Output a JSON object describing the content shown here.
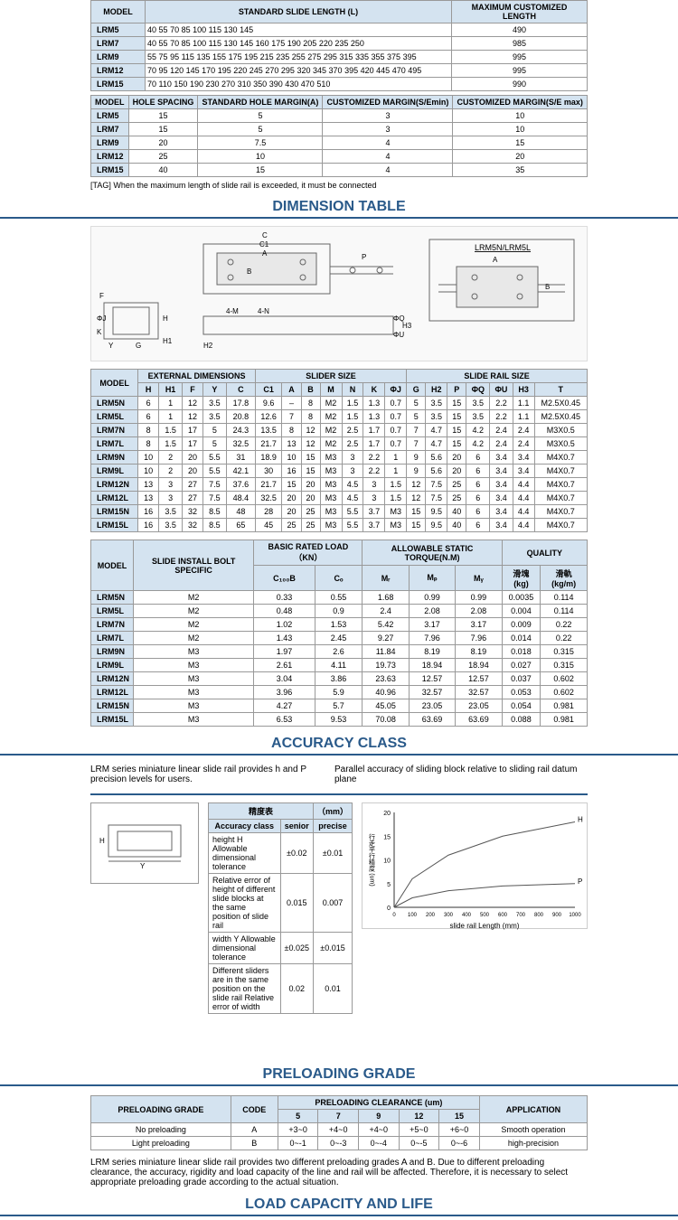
{
  "colors": {
    "header_bg": "#d4e3f0",
    "border": "#999999",
    "title": "#2a5a8a",
    "text": "#222222"
  },
  "table1": {
    "headers": [
      "MODEL",
      "STANDARD SLIDE LENGTH (L)",
      "MAXIMUM CUSTOMIZED LENGTH"
    ],
    "rows": [
      {
        "model": "LRM5",
        "lengths": "40 55 70 85 100 115 130 145",
        "max": "490"
      },
      {
        "model": "LRM7",
        "lengths": "40 55 70 85 100 115 130 145 160 175 190 205 220 235 250",
        "max": "985"
      },
      {
        "model": "LRM9",
        "lengths": "55 75 95 115 135 155 175 195 215 235 255 275 295 315 335 355 375 395",
        "max": "995"
      },
      {
        "model": "LRM12",
        "lengths": "70 95 120 145 170 195 220 245 270 295 320 345 370 395 420 445 470 495",
        "max": "995"
      },
      {
        "model": "LRM15",
        "lengths": "70 110 150 190 230 270 310 350 390 430 470 510",
        "max": "990"
      }
    ]
  },
  "table2": {
    "headers": [
      "MODEL",
      "HOLE SPACING",
      "STANDARD HOLE MARGIN(A)",
      "CUSTOMIZED MARGIN(S/Emin)",
      "CUSTOMIZED MARGIN(S/E max)"
    ],
    "rows": [
      [
        "LRM5",
        "15",
        "5",
        "3",
        "10"
      ],
      [
        "LRM7",
        "15",
        "5",
        "3",
        "10"
      ],
      [
        "LRM9",
        "20",
        "7.5",
        "4",
        "15"
      ],
      [
        "LRM12",
        "25",
        "10",
        "4",
        "20"
      ],
      [
        "LRM15",
        "40",
        "15",
        "4",
        "35"
      ]
    ]
  },
  "note1": "[TAG]   When the maximum length of slide rail is exceeded, it must be connected",
  "sec_dimension": "DIMENSION TABLE",
  "diagram_label": "LRM5N/LRM5L",
  "dim_table": {
    "group_headers": [
      "MODEL",
      "EXTERNAL DIMENSIONS",
      "SLIDER  SIZE",
      "SLIDE RAIL  SIZE"
    ],
    "sub_headers": [
      "H",
      "H1",
      "F",
      "Y",
      "C",
      "C1",
      "A",
      "B",
      "M",
      "N",
      "K",
      "ΦJ",
      "G",
      "H2",
      "P",
      "ΦQ",
      "ΦU",
      "H3",
      "T"
    ],
    "rows": [
      [
        "LRM5N",
        "6",
        "1",
        "12",
        "3.5",
        "17.8",
        "9.6",
        "–",
        "8",
        "M2",
        "1.5",
        "1.3",
        "0.7",
        "5",
        "3.5",
        "15",
        "3.5",
        "2.2",
        "1.1",
        "M2.5X0.45"
      ],
      [
        "LRM5L",
        "6",
        "1",
        "12",
        "3.5",
        "20.8",
        "12.6",
        "7",
        "8",
        "M2",
        "1.5",
        "1.3",
        "0.7",
        "5",
        "3.5",
        "15",
        "3.5",
        "2.2",
        "1.1",
        "M2.5X0.45"
      ],
      [
        "LRM7N",
        "8",
        "1.5",
        "17",
        "5",
        "24.3",
        "13.5",
        "8",
        "12",
        "M2",
        "2.5",
        "1.7",
        "0.7",
        "7",
        "4.7",
        "15",
        "4.2",
        "2.4",
        "2.4",
        "M3X0.5"
      ],
      [
        "LRM7L",
        "8",
        "1.5",
        "17",
        "5",
        "32.5",
        "21.7",
        "13",
        "12",
        "M2",
        "2.5",
        "1.7",
        "0.7",
        "7",
        "4.7",
        "15",
        "4.2",
        "2.4",
        "2.4",
        "M3X0.5"
      ],
      [
        "LRM9N",
        "10",
        "2",
        "20",
        "5.5",
        "31",
        "18.9",
        "10",
        "15",
        "M3",
        "3",
        "2.2",
        "1",
        "9",
        "5.6",
        "20",
        "6",
        "3.4",
        "3.4",
        "M4X0.7"
      ],
      [
        "LRM9L",
        "10",
        "2",
        "20",
        "5.5",
        "42.1",
        "30",
        "16",
        "15",
        "M3",
        "3",
        "2.2",
        "1",
        "9",
        "5.6",
        "20",
        "6",
        "3.4",
        "3.4",
        "M4X0.7"
      ],
      [
        "LRM12N",
        "13",
        "3",
        "27",
        "7.5",
        "37.6",
        "21.7",
        "15",
        "20",
        "M3",
        "4.5",
        "3",
        "1.5",
        "12",
        "7.5",
        "25",
        "6",
        "3.4",
        "4.4",
        "M4X0.7"
      ],
      [
        "LRM12L",
        "13",
        "3",
        "27",
        "7.5",
        "48.4",
        "32.5",
        "20",
        "20",
        "M3",
        "4.5",
        "3",
        "1.5",
        "12",
        "7.5",
        "25",
        "6",
        "3.4",
        "4.4",
        "M4X0.7"
      ],
      [
        "LRM15N",
        "16",
        "3.5",
        "32",
        "8.5",
        "48",
        "28",
        "20",
        "25",
        "M3",
        "5.5",
        "3.7",
        "M3",
        "15",
        "9.5",
        "40",
        "6",
        "3.4",
        "4.4",
        "M4X0.7"
      ],
      [
        "LRM15L",
        "16",
        "3.5",
        "32",
        "8.5",
        "65",
        "45",
        "25",
        "25",
        "M3",
        "5.5",
        "3.7",
        "M3",
        "15",
        "9.5",
        "40",
        "6",
        "3.4",
        "4.4",
        "M4X0.7"
      ]
    ]
  },
  "load_table": {
    "group_headers": [
      "MODEL",
      "SLIDE INSTALL BOLT SPECIFIC",
      "BASIC RATED LOAD（KN）",
      "ALLOWABLE STATIC TORQUE(N.M)",
      "QUALITY"
    ],
    "sub_headers": [
      "",
      "",
      "C₁₀₀B",
      "Cₒ",
      "Mᵣ",
      "Mₚ",
      "Mᵧ",
      "滑塊(kg)",
      "滑軌(kg/m)"
    ],
    "rows": [
      [
        "LRM5N",
        "M2",
        "0.33",
        "0.55",
        "1.68",
        "0.99",
        "0.99",
        "0.0035",
        "0.114"
      ],
      [
        "LRM5L",
        "M2",
        "0.48",
        "0.9",
        "2.4",
        "2.08",
        "2.08",
        "0.004",
        "0.114"
      ],
      [
        "LRM7N",
        "M2",
        "1.02",
        "1.53",
        "5.42",
        "3.17",
        "3.17",
        "0.009",
        "0.22"
      ],
      [
        "LRM7L",
        "M2",
        "1.43",
        "2.45",
        "9.27",
        "7.96",
        "7.96",
        "0.014",
        "0.22"
      ],
      [
        "LRM9N",
        "M3",
        "1.97",
        "2.6",
        "11.84",
        "8.19",
        "8.19",
        "0.018",
        "0.315"
      ],
      [
        "LRM9L",
        "M3",
        "2.61",
        "4.11",
        "19.73",
        "18.94",
        "18.94",
        "0.027",
        "0.315"
      ],
      [
        "LRM12N",
        "M3",
        "3.04",
        "3.86",
        "23.63",
        "12.57",
        "12.57",
        "0.037",
        "0.602"
      ],
      [
        "LRM12L",
        "M3",
        "3.96",
        "5.9",
        "40.96",
        "32.57",
        "32.57",
        "0.053",
        "0.602"
      ],
      [
        "LRM15N",
        "M3",
        "4.27",
        "5.7",
        "45.05",
        "23.05",
        "23.05",
        "0.054",
        "0.981"
      ],
      [
        "LRM15L",
        "M3",
        "6.53",
        "9.53",
        "70.08",
        "63.69",
        "63.69",
        "0.088",
        "0.981"
      ]
    ]
  },
  "sec_accuracy": "ACCURACY CLASS",
  "accuracy_intro": "LRM series miniature linear slide rail provides h and P precision levels for users.",
  "accuracy_chart_title": "Parallel accuracy of sliding block relative to sliding rail datum plane",
  "accuracy_table": {
    "title": "精度表",
    "unit": "（mm）",
    "headers": [
      "Accuracy class",
      "senior",
      "precise"
    ],
    "rows": [
      [
        "height H Allowable dimensional tolerance",
        "±0.02",
        "±0.01"
      ],
      [
        "Relative error of height of different slide blocks at the same position of slide rail",
        "0.015",
        "0.007"
      ],
      [
        "width Y Allowable dimensional tolerance",
        "±0.025",
        "±0.015"
      ],
      [
        "Different sliders are in the same position on the slide rail Relative error of width",
        "0.02",
        "0.01"
      ]
    ]
  },
  "chart": {
    "ylabel": "行走平行精度 (um)",
    "xlabel": "slide rail Length (mm)",
    "xticks": [
      "0",
      "100",
      "200",
      "300",
      "400",
      "500",
      "600",
      "700",
      "800",
      "900",
      "1000"
    ],
    "yticks": [
      "0",
      "5",
      "10",
      "15",
      "20"
    ],
    "curves": [
      {
        "label": "H",
        "color": "#555",
        "points": [
          [
            0,
            0
          ],
          [
            100,
            6
          ],
          [
            300,
            11
          ],
          [
            600,
            15
          ],
          [
            1000,
            18
          ]
        ]
      },
      {
        "label": "P",
        "color": "#555",
        "points": [
          [
            0,
            0
          ],
          [
            100,
            2
          ],
          [
            300,
            3.5
          ],
          [
            600,
            4.5
          ],
          [
            1000,
            5
          ]
        ]
      }
    ]
  },
  "sec_preload": "PRELOADING GRADE",
  "preload_table": {
    "headers": [
      "PRELOADING GRADE",
      "CODE",
      "5",
      "7",
      "9",
      "12",
      "15",
      "APPLICATION"
    ],
    "midheader": "PRELOADING CLEARANCE",
    "unit": "(um)",
    "rows": [
      [
        "No preloading",
        "A",
        "+3~0",
        "+4~0",
        "+4~0",
        "+5~0",
        "+6~0",
        "Smooth operation"
      ],
      [
        "Light preloading",
        "B",
        "0~-1",
        "0~-3",
        "0~-4",
        "0~-5",
        "0~-6",
        "high-precision"
      ]
    ]
  },
  "preload_note": "LRM series miniature linear slide rail provides two different preloading grades A and B. Due to different preloading clearance, the accuracy, rigidity and load capacity of the line and rail will be affected. Therefore, it is necessary to select appropriate preloading grade according to the actual situation.",
  "sec_load": "LOAD CAPACITY AND LIFE"
}
